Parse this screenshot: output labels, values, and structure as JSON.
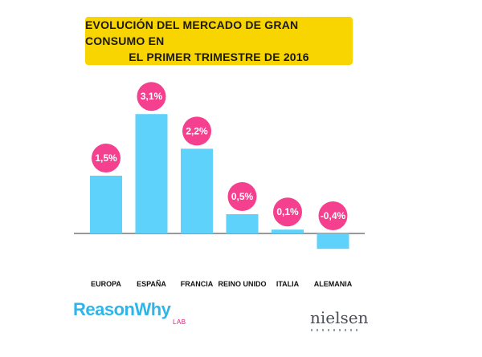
{
  "title": {
    "line1": "EVOLUCIÓN DEL MERCADO DE GRAN CONSUMO EN",
    "line2": "EL PRIMER TRIMESTRE DE 2016"
  },
  "colors": {
    "title_background": "#f8d400",
    "bar": "#5ed2fb",
    "bubble": "#f4408e",
    "axis": "#333333"
  },
  "chart_data": {
    "type": "bar",
    "categories": [
      "EUROPA",
      "ESPAÑA",
      "FRANCIA",
      "REINO UNIDO",
      "ITALIA",
      "ALEMANIA"
    ],
    "values": [
      1.5,
      3.1,
      2.2,
      0.5,
      0.1,
      -0.4
    ],
    "value_labels": [
      "1,5%",
      "3,1%",
      "2,2%",
      "0,5%",
      "0,1%",
      "-0,4%"
    ],
    "title": "EVOLUCIÓN DEL MERCADO DE GRAN CONSUMO EN EL PRIMER TRIMESTRE DE 2016",
    "xlabel": "",
    "ylabel": "",
    "grid": false,
    "legend": "none"
  },
  "branding": {
    "left_logo": "ReasonWhy",
    "left_logo_sub": "LAB",
    "right_logo": "nielsen"
  }
}
